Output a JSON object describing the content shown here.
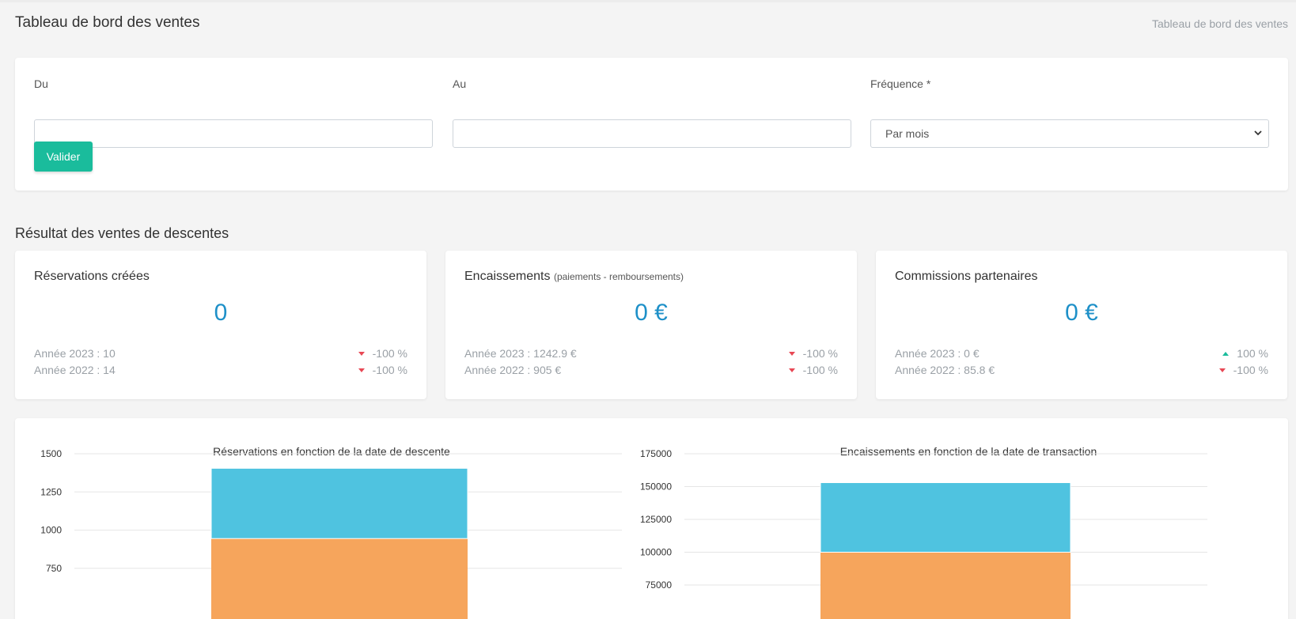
{
  "header": {
    "title": "Tableau de bord des ventes",
    "breadcrumb": "Tableau de bord des ventes"
  },
  "filters": {
    "from_label": "Du",
    "from_value": "",
    "to_label": "Au",
    "to_value": "",
    "frequency_label": "Fréquence *",
    "frequency_value": "Par mois",
    "submit_label": "Valider"
  },
  "section": {
    "title": "Résultat des ventes de descentes"
  },
  "stats": [
    {
      "title": "Réservations créées",
      "subtitle": "",
      "value": "0",
      "rows": [
        {
          "label": "Année 2023 : 10",
          "trend": "down",
          "pct": "-100 %"
        },
        {
          "label": "Année 2022 : 14",
          "trend": "down",
          "pct": "-100 %"
        }
      ]
    },
    {
      "title": "Encaissements",
      "subtitle": "(paiements - remboursements)",
      "value": "0 €",
      "rows": [
        {
          "label": "Année 2023 : 1242.9 €",
          "trend": "down",
          "pct": "-100 %"
        },
        {
          "label": "Année 2022 : 905 €",
          "trend": "down",
          "pct": "-100 %"
        }
      ]
    },
    {
      "title": "Commissions partenaires",
      "subtitle": "",
      "value": "0 €",
      "rows": [
        {
          "label": "Année 2023 : 0 €",
          "trend": "up",
          "pct": "100 %"
        },
        {
          "label": "Année 2022 : 85.8 €",
          "trend": "down",
          "pct": "-100 %"
        }
      ]
    }
  ],
  "colors": {
    "accent": "#1abc9c",
    "value": "#1e90c8",
    "series_a": "#f6a55c",
    "series_b": "#4fc3e0",
    "down": "#e84855",
    "up": "#1abc9c"
  },
  "chart_data": [
    {
      "type": "bar",
      "title": "Réservations en fonction de la date de descente",
      "stacked": true,
      "categories": [
        ""
      ],
      "series": [
        {
          "values": [
            945
          ]
        },
        {
          "values": [
            460
          ]
        }
      ],
      "yticks": [
        750,
        1000,
        1250,
        1500
      ],
      "ylim_visible": [
        700,
        1500
      ],
      "grid": true
    },
    {
      "type": "bar",
      "title": "Encaissements en fonction de la date de transaction",
      "stacked": true,
      "categories": [
        ""
      ],
      "series": [
        {
          "values": [
            100000
          ]
        },
        {
          "values": [
            53000
          ]
        }
      ],
      "yticks": [
        75000,
        100000,
        125000,
        150000,
        175000
      ],
      "ylim_visible": [
        70000,
        175000
      ],
      "grid": true
    }
  ]
}
